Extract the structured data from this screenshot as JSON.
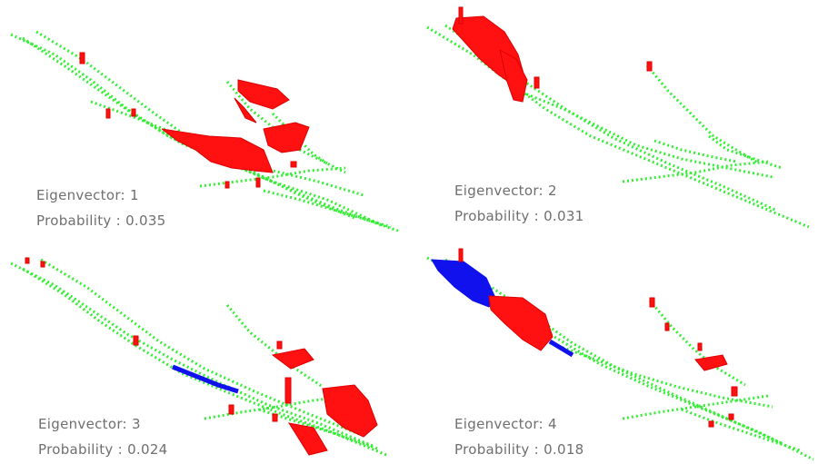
{
  "colors": {
    "background": "#ffffff",
    "green_network": "#33ee33",
    "positive_component": "#ff1111",
    "negative_component": "#1111ee",
    "label_text": "#6f6f6f"
  },
  "panels": [
    {
      "eigenvector_label": "Eigenvector: 1",
      "probability_label": "Probability : 0.035",
      "eigenvector": 1,
      "probability": 0.035,
      "has_blue": false
    },
    {
      "eigenvector_label": "Eigenvector: 2",
      "probability_label": "Probability : 0.031",
      "eigenvector": 2,
      "probability": 0.031,
      "has_blue": false
    },
    {
      "eigenvector_label": "Eigenvector: 3",
      "probability_label": "Probability : 0.024",
      "eigenvector": 3,
      "probability": 0.024,
      "has_blue": true
    },
    {
      "eigenvector_label": "Eigenvector: 4",
      "probability_label": "Probability : 0.018",
      "eigenvector": 4,
      "probability": 0.018,
      "has_blue": true
    }
  ]
}
